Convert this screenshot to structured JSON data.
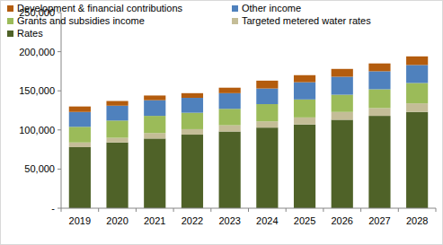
{
  "chart_data": {
    "type": "bar",
    "stacked": true,
    "grid": false,
    "legend": "top",
    "categories": [
      "2019",
      "2020",
      "2021",
      "2022",
      "2023",
      "2024",
      "2025",
      "2026",
      "2027",
      "2028"
    ],
    "series": [
      {
        "name": "Rates",
        "color": "#4f6228",
        "values": [
          78000,
          84000,
          89000,
          94000,
          98000,
          103000,
          107000,
          113000,
          118000,
          123000
        ]
      },
      {
        "name": "Targeted metered water rates",
        "color": "#c4bd97",
        "values": [
          6000,
          6000,
          7000,
          7000,
          8000,
          8000,
          9000,
          10000,
          10000,
          11000
        ]
      },
      {
        "name": "Grants and subsidies income",
        "color": "#9bbb59",
        "values": [
          20000,
          22000,
          22000,
          21000,
          21000,
          22000,
          23000,
          22000,
          24000,
          26000
        ]
      },
      {
        "name": "Other income",
        "color": "#4f81bd",
        "values": [
          19000,
          19000,
          20000,
          19000,
          20000,
          20000,
          22000,
          23000,
          23000,
          23000
        ]
      },
      {
        "name": "Development & financial contributions",
        "color": "#b35c0e",
        "values": [
          7000,
          6000,
          6000,
          6000,
          7000,
          10000,
          9000,
          10000,
          10000,
          11000
        ]
      }
    ],
    "ylim": [
      0,
      250000
    ],
    "yticks": [
      {
        "value": 0,
        "label": "-"
      },
      {
        "value": 50000,
        "label": "50,000"
      },
      {
        "value": 100000,
        "label": "100,000"
      },
      {
        "value": 150000,
        "label": "150,000"
      },
      {
        "value": 200000,
        "label": "200,000"
      },
      {
        "value": 250000,
        "label": "250,000"
      }
    ]
  }
}
